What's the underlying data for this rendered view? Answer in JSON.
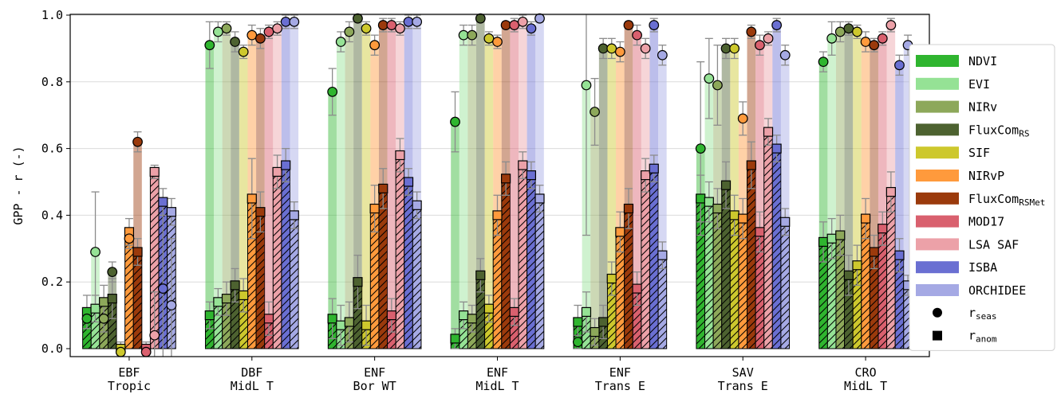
{
  "chart_data": {
    "type": "bar",
    "ylabel": "GPP - r (-)",
    "ylim": [
      0.0,
      1.0
    ],
    "yticks": [
      "0.0",
      "0.2",
      "0.4",
      "0.6",
      "0.8",
      "1.0"
    ],
    "grid": "horizontal",
    "legend_position": "right",
    "categories": [
      {
        "line1": "EBF",
        "line2": "Tropic"
      },
      {
        "line1": "DBF",
        "line2": "MidL T"
      },
      {
        "line1": "ENF",
        "line2": "Bor WT"
      },
      {
        "line1": "ENF",
        "line2": "MidL T"
      },
      {
        "line1": "ENF",
        "line2": "Trans E"
      },
      {
        "line1": "SAV",
        "line2": "Trans E"
      },
      {
        "line1": "CRO",
        "line2": "MidL T"
      }
    ],
    "series": [
      {
        "name": "NDVI",
        "sub": "",
        "color": "#2fb52f",
        "seas": [
          0.09,
          0.91,
          0.77,
          0.68,
          0.02,
          0.6,
          0.86
        ],
        "seas_err": [
          0.03,
          0.07,
          0.07,
          0.09,
          0.02,
          0.26,
          0.03
        ],
        "anom": [
          0.11,
          0.1,
          0.09,
          0.03,
          0.08,
          0.45,
          0.32
        ],
        "anom_err": [
          0.05,
          0.04,
          0.06,
          0.03,
          0.05,
          0.07,
          0.06
        ]
      },
      {
        "name": "EVI",
        "sub": "",
        "color": "#95e295",
        "seas": [
          0.29,
          0.95,
          0.92,
          0.94,
          0.79,
          0.81,
          0.93
        ],
        "seas_err": [
          0.18,
          0.03,
          0.03,
          0.03,
          0.45,
          0.12,
          0.05
        ],
        "anom": [
          0.12,
          0.14,
          0.07,
          0.1,
          0.11,
          0.44,
          0.33
        ],
        "anom_err": [
          0.04,
          0.04,
          0.06,
          0.04,
          0.06,
          0.06,
          0.06
        ]
      },
      {
        "name": "NIRv",
        "sub": "",
        "color": "#8da85a",
        "seas": [
          0.09,
          0.96,
          0.95,
          0.94,
          0.71,
          0.79,
          0.95
        ],
        "seas_err": [
          0.04,
          0.02,
          0.03,
          0.03,
          0.1,
          0.12,
          0.03
        ],
        "anom": [
          0.14,
          0.15,
          0.08,
          0.09,
          0.05,
          0.42,
          0.34
        ],
        "anom_err": [
          0.05,
          0.05,
          0.06,
          0.04,
          0.04,
          0.06,
          0.06
        ]
      },
      {
        "name": "FluxCom",
        "sub": "RS",
        "color": "#4d6230",
        "seas": [
          0.23,
          0.92,
          0.99,
          0.99,
          0.9,
          0.9,
          0.96
        ],
        "seas_err": [
          0.03,
          0.03,
          0.01,
          0.01,
          0.03,
          0.03,
          0.02
        ],
        "anom": [
          0.15,
          0.19,
          0.2,
          0.22,
          0.08,
          0.49,
          0.22
        ],
        "anom_err": [
          0.06,
          0.05,
          0.08,
          0.05,
          0.05,
          0.07,
          0.06
        ]
      },
      {
        "name": "SIF",
        "sub": "",
        "color": "#cdc82d",
        "seas": [
          -0.01,
          0.89,
          0.96,
          0.93,
          0.9,
          0.9,
          0.95
        ],
        "seas_err": [
          0.02,
          0.02,
          0.02,
          0.02,
          0.03,
          0.03,
          0.02
        ],
        "anom": [
          0.0,
          0.16,
          0.07,
          0.12,
          0.21,
          0.4,
          0.25
        ],
        "anom_err": [
          0.02,
          0.05,
          0.06,
          0.04,
          0.05,
          0.06,
          0.06
        ]
      },
      {
        "name": "NIRvP",
        "sub": "",
        "color": "#ff9a3c",
        "seas": [
          0.33,
          0.94,
          0.91,
          0.92,
          0.89,
          0.69,
          0.92
        ],
        "seas_err": [
          0.03,
          0.03,
          0.03,
          0.02,
          0.03,
          0.05,
          0.03
        ],
        "anom": [
          0.35,
          0.45,
          0.42,
          0.4,
          0.35,
          0.39,
          0.39
        ],
        "anom_err": [
          0.04,
          0.12,
          0.07,
          0.06,
          0.06,
          0.06,
          0.06
        ]
      },
      {
        "name": "FluxCom",
        "sub": "RSMet",
        "color": "#9b3a0c",
        "seas": [
          0.62,
          0.93,
          0.97,
          0.97,
          0.97,
          0.95,
          0.91
        ],
        "seas_err": [
          0.03,
          0.03,
          0.02,
          0.01,
          0.01,
          0.02,
          0.02
        ],
        "anom": [
          0.29,
          0.41,
          0.48,
          0.51,
          0.42,
          0.55,
          0.29
        ],
        "anom_err": [
          0.04,
          0.06,
          0.06,
          0.05,
          0.06,
          0.07,
          0.05
        ]
      },
      {
        "name": "MOD17",
        "sub": "",
        "color": "#d9606e",
        "seas": [
          -0.01,
          0.95,
          0.97,
          0.97,
          0.94,
          0.91,
          0.93
        ],
        "seas_err": [
          0.02,
          0.02,
          0.02,
          0.02,
          0.03,
          0.03,
          0.02
        ],
        "anom": [
          0.0,
          0.09,
          0.1,
          0.11,
          0.18,
          0.35,
          0.36
        ],
        "anom_err": [
          0.02,
          0.05,
          0.05,
          0.04,
          0.05,
          0.06,
          0.05
        ]
      },
      {
        "name": "LSA SAF",
        "sub": "",
        "color": "#eca1a8",
        "seas": [
          0.04,
          0.96,
          0.96,
          0.98,
          0.9,
          0.93,
          0.97
        ],
        "seas_err": [
          0.13,
          0.02,
          0.02,
          0.02,
          0.03,
          0.02,
          0.02
        ],
        "anom": [
          0.53,
          0.53,
          0.58,
          0.55,
          0.52,
          0.65,
          0.47
        ],
        "anom_err": [
          0.02,
          0.05,
          0.05,
          0.04,
          0.05,
          0.04,
          0.06
        ]
      },
      {
        "name": "ISBA",
        "sub": "",
        "color": "#6a6fd2",
        "seas": [
          0.18,
          0.98,
          0.98,
          0.96,
          0.97,
          0.97,
          0.85
        ],
        "seas_err": [
          0.25,
          0.02,
          0.02,
          0.02,
          0.02,
          0.02,
          0.03
        ],
        "anom": [
          0.44,
          0.55,
          0.5,
          0.52,
          0.54,
          0.6,
          0.28
        ],
        "anom_err": [
          0.04,
          0.05,
          0.04,
          0.04,
          0.04,
          0.04,
          0.05
        ]
      },
      {
        "name": "ORCHIDEE",
        "sub": "",
        "color": "#a5a9e4",
        "seas": [
          0.13,
          0.98,
          0.98,
          0.99,
          0.88,
          0.88,
          0.91
        ],
        "seas_err": [
          0.2,
          0.02,
          0.02,
          0.01,
          0.03,
          0.03,
          0.03
        ],
        "anom": [
          0.41,
          0.4,
          0.43,
          0.45,
          0.28,
          0.38,
          0.19
        ],
        "anom_err": [
          0.04,
          0.04,
          0.04,
          0.04,
          0.04,
          0.04,
          0.03
        ]
      }
    ],
    "markers": [
      {
        "symbol": "circle",
        "label": "r",
        "sub": "seas"
      },
      {
        "symbol": "square",
        "label": "r",
        "sub": "anom"
      }
    ]
  }
}
